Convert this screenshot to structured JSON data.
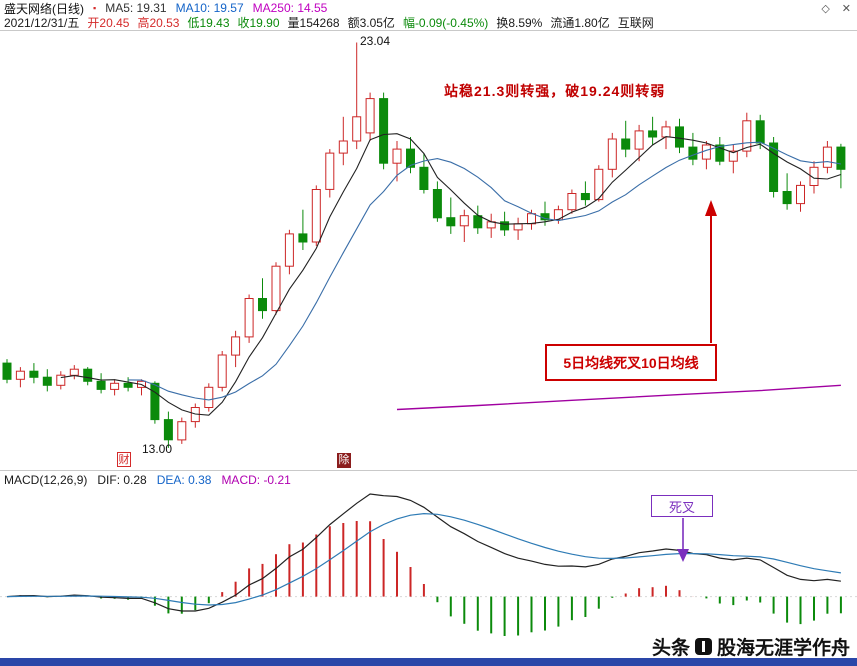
{
  "titlebar": {
    "title": "盛天网络(日线)",
    "marker": "▪",
    "ma5": "MA5: 19.31",
    "ma10": "MA10: 19.57",
    "ma250": "MA250: 14.55",
    "diamond_icon": "◇",
    "close_icon": "✕"
  },
  "infobar": {
    "date": "2021/12/31/五",
    "open": "开20.45",
    "high": "高20.53",
    "low": "低19.43",
    "close": "收19.90",
    "volume": "量154268",
    "amount": "额3.05亿",
    "change": "幅-0.09(-0.45%)",
    "turnover": "换8.59%",
    "float_shares": "流通1.80亿",
    "industry": "互联网"
  },
  "macd_header": {
    "indicator": "MACD(12,26,9)",
    "dif": "DIF: 0.28",
    "dea": "DEA: 0.38",
    "macd": "MACD: -0.21"
  },
  "annotations": {
    "peak_label": "23.04",
    "low_label": "13.00",
    "strategy_note": "站稳21.3则转强，破19.24则转弱",
    "death_cross_note": "5日均线死叉10日均线",
    "macd_death_cross": "死叉",
    "marker_financial": "财",
    "marker_ex_dividend": "除"
  },
  "watermark": {
    "brand": "头条",
    "name": "股海无涯学作舟"
  },
  "chart_data": {
    "type": "candlestick",
    "title": "盛天网络 日线 K线图 + MACD",
    "ylim": [
      12.75,
      23.25
    ],
    "high_point": 23.04,
    "low_point": 13.0,
    "last_bar": {
      "date": "2021/12/31",
      "open": 20.45,
      "high": 20.53,
      "low": 19.43,
      "close": 19.9,
      "volume": 154268,
      "amount": "3.05亿",
      "change": -0.09,
      "change_pct": -0.45,
      "turnover_pct": 8.59
    },
    "ma_values": {
      "ma5": 19.31,
      "ma10": 19.57,
      "ma250": 14.55
    },
    "macd_values": {
      "params": [
        12,
        26,
        9
      ],
      "dif": 0.28,
      "dea": 0.38,
      "macd": -0.21
    },
    "candles": [
      [
        15.1,
        15.2,
        14.6,
        14.7
      ],
      [
        14.7,
        15.0,
        14.5,
        14.9
      ],
      [
        14.9,
        15.1,
        14.6,
        14.75
      ],
      [
        14.75,
        14.95,
        14.4,
        14.55
      ],
      [
        14.55,
        14.9,
        14.45,
        14.8
      ],
      [
        14.8,
        15.05,
        14.7,
        14.95
      ],
      [
        14.95,
        15.0,
        14.55,
        14.65
      ],
      [
        14.65,
        14.85,
        14.35,
        14.45
      ],
      [
        14.45,
        14.7,
        14.3,
        14.6
      ],
      [
        14.6,
        14.75,
        14.4,
        14.5
      ],
      [
        14.5,
        14.7,
        14.3,
        14.65
      ],
      [
        14.6,
        14.65,
        13.6,
        13.7
      ],
      [
        13.7,
        13.9,
        13.0,
        13.2
      ],
      [
        13.2,
        13.75,
        13.1,
        13.65
      ],
      [
        13.65,
        14.1,
        13.5,
        14.0
      ],
      [
        14.0,
        14.6,
        13.9,
        14.5
      ],
      [
        14.5,
        15.4,
        14.4,
        15.3
      ],
      [
        15.3,
        15.9,
        15.0,
        15.75
      ],
      [
        15.75,
        16.8,
        15.6,
        16.7
      ],
      [
        16.7,
        17.2,
        16.2,
        16.4
      ],
      [
        16.4,
        17.6,
        16.3,
        17.5
      ],
      [
        17.5,
        18.4,
        17.3,
        18.3
      ],
      [
        18.3,
        18.9,
        17.9,
        18.1
      ],
      [
        18.1,
        19.5,
        18.0,
        19.4
      ],
      [
        19.4,
        20.4,
        19.2,
        20.3
      ],
      [
        20.3,
        21.2,
        20.0,
        20.6
      ],
      [
        20.6,
        23.04,
        20.4,
        21.2
      ],
      [
        20.8,
        21.8,
        20.6,
        21.65
      ],
      [
        21.65,
        21.8,
        19.9,
        20.05
      ],
      [
        20.05,
        20.6,
        19.6,
        20.4
      ],
      [
        20.4,
        20.7,
        19.8,
        19.95
      ],
      [
        19.95,
        20.3,
        19.3,
        19.4
      ],
      [
        19.4,
        19.6,
        18.6,
        18.7
      ],
      [
        18.7,
        19.2,
        18.3,
        18.5
      ],
      [
        18.5,
        18.9,
        18.1,
        18.75
      ],
      [
        18.75,
        19.0,
        18.3,
        18.45
      ],
      [
        18.45,
        18.8,
        18.2,
        18.6
      ],
      [
        18.6,
        18.85,
        18.25,
        18.4
      ],
      [
        18.4,
        18.7,
        18.15,
        18.55
      ],
      [
        18.55,
        18.9,
        18.4,
        18.8
      ],
      [
        18.8,
        19.1,
        18.5,
        18.65
      ],
      [
        18.65,
        19.0,
        18.55,
        18.9
      ],
      [
        18.9,
        19.4,
        18.8,
        19.3
      ],
      [
        19.3,
        19.6,
        19.0,
        19.15
      ],
      [
        19.15,
        20.0,
        19.1,
        19.9
      ],
      [
        19.9,
        20.8,
        19.7,
        20.65
      ],
      [
        20.65,
        21.1,
        20.2,
        20.4
      ],
      [
        20.4,
        21.0,
        20.1,
        20.85
      ],
      [
        20.85,
        21.2,
        20.5,
        20.7
      ],
      [
        20.7,
        21.1,
        20.4,
        20.95
      ],
      [
        20.95,
        21.15,
        20.3,
        20.45
      ],
      [
        20.45,
        20.8,
        20.0,
        20.15
      ],
      [
        20.15,
        20.6,
        19.9,
        20.5
      ],
      [
        20.5,
        20.7,
        20.0,
        20.1
      ],
      [
        20.1,
        20.5,
        19.8,
        20.35
      ],
      [
        20.35,
        21.3,
        20.2,
        21.1
      ],
      [
        21.1,
        21.25,
        20.4,
        20.55
      ],
      [
        20.55,
        20.7,
        19.2,
        19.35
      ],
      [
        19.35,
        19.8,
        18.9,
        19.05
      ],
      [
        19.05,
        19.6,
        18.85,
        19.5
      ],
      [
        19.5,
        20.1,
        19.3,
        19.95
      ],
      [
        19.95,
        20.6,
        19.8,
        20.45
      ],
      [
        20.45,
        20.53,
        19.43,
        19.9
      ]
    ],
    "ma250_points": [
      [
        29,
        13.95
      ],
      [
        35,
        14.05
      ],
      [
        42,
        14.18
      ],
      [
        50,
        14.32
      ],
      [
        56,
        14.42
      ],
      [
        62,
        14.55
      ]
    ],
    "colors": {
      "up": "#cc2626",
      "down": "#0b8a0b",
      "ma5": "#222222",
      "ma10": "#3a6ea8",
      "ma250": "#a000a0",
      "dif": "#222222",
      "dea": "#2e7bb5",
      "annotation_red": "#cc0000",
      "annotation_purple": "#7b2fbe"
    }
  }
}
